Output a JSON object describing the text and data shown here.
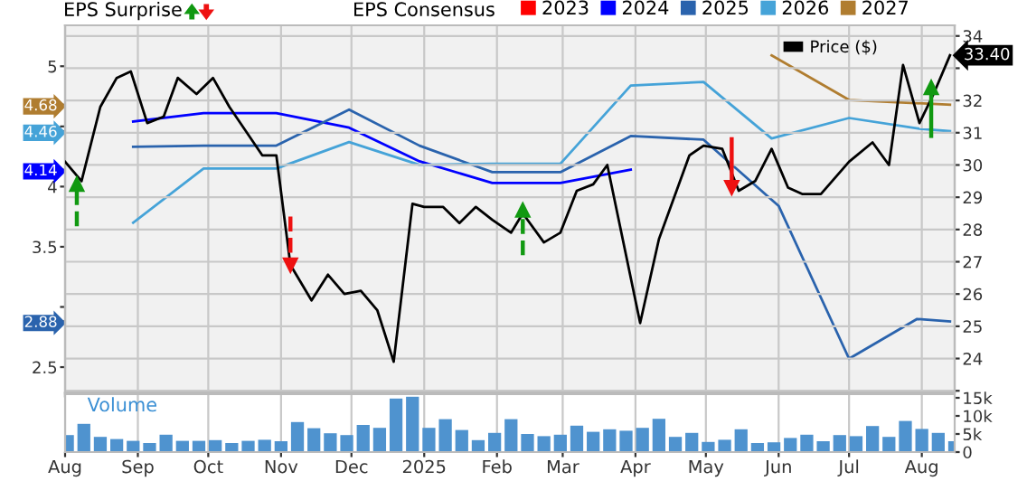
{
  "chart_data": [
    {
      "type": "line",
      "ylabel": "EPS Surprise",
      "legend_title": "EPS Consensus",
      "tick_labels": "y",
      "grid": true,
      "legend": "top",
      "marker": "none",
      "xlim": [
        "2024-08-01",
        "2025-08-15"
      ],
      "xticks": [
        {
          "value": "2024-08-01",
          "label": null
        },
        {
          "value": "2024-09-01",
          "label": null
        },
        {
          "value": "2024-10-01",
          "label": null
        },
        {
          "value": "2024-11-01",
          "label": null
        },
        {
          "value": "2024-12-01",
          "label": null
        },
        {
          "value": "2025-01-01",
          "label": null
        },
        {
          "value": "2025-02-01",
          "label": null
        },
        {
          "value": "2025-03-01",
          "label": null
        },
        {
          "value": "2025-04-01",
          "label": null
        },
        {
          "value": "2025-05-01",
          "label": null
        },
        {
          "value": "2025-06-01",
          "label": null
        },
        {
          "value": "2025-07-01",
          "label": null
        },
        {
          "value": "2025-08-01",
          "label": null
        }
      ],
      "ylim": [
        2.29,
        5.34
      ],
      "yticks": [
        2.5,
        2.88,
        {
          "value": 3,
          "label": null
        },
        3.5,
        4,
        4.14,
        4.46,
        {
          "value": 4.5,
          "label": null
        },
        4.68,
        5
      ],
      "y2lim": [
        22.95,
        34.33
      ],
      "y2ticks": [
        {
          "value": 23,
          "label": null
        },
        24,
        25,
        26,
        27,
        28,
        29,
        30,
        31,
        32,
        {
          "value": 33,
          "label": null
        },
        34
      ],
      "series": [
        {
          "name": "2023",
          "color": "#ff0000"
        },
        {
          "name": "2024",
          "color": "#0000ff",
          "x": [
            "2024-08-30",
            "2024-09-29",
            "2024-10-30",
            "2024-11-30",
            "2024-12-30",
            "2025-01-30",
            "2025-02-28",
            "2025-03-30"
          ],
          "values": [
            4.54,
            4.61,
            4.61,
            4.49,
            4.21,
            4.03,
            4.03,
            4.14
          ]
        },
        {
          "name": "2025",
          "color": "#2a63ad",
          "x": [
            "2024-08-30",
            "2024-09-29",
            "2024-10-30",
            "2024-11-30",
            "2024-12-30",
            "2025-01-30",
            "2025-02-28",
            "2025-03-30",
            "2025-04-30",
            "2025-06-01",
            "2025-07-01",
            "2025-07-30",
            "2025-08-13"
          ],
          "values": [
            4.33,
            4.34,
            4.34,
            4.64,
            4.34,
            4.12,
            4.12,
            4.42,
            4.39,
            3.84,
            2.57,
            2.9,
            2.88
          ]
        },
        {
          "name": "2026",
          "color": "#45a3d8",
          "x": [
            "2024-08-30",
            "2024-09-29",
            "2024-10-30",
            "2024-11-30",
            "2024-12-30",
            "2025-01-30",
            "2025-02-28",
            "2025-03-30",
            "2025-04-30",
            "2025-05-29",
            "2025-07-01",
            "2025-07-31",
            "2025-08-13"
          ],
          "values": [
            3.7,
            4.15,
            4.15,
            4.37,
            4.18,
            4.19,
            4.19,
            4.84,
            4.87,
            4.4,
            4.57,
            4.48,
            4.46
          ]
        },
        {
          "name": "2027",
          "color": "#b07d30",
          "x": [
            "2025-05-29",
            "2025-07-01",
            "2025-08-13"
          ],
          "values": [
            5.09,
            4.72,
            4.68
          ]
        },
        {
          "name": "Price ($)",
          "color": "#000000",
          "axis": "y2",
          "x": [
            "2024-08-01",
            "2024-08-08",
            "2024-08-16",
            "2024-08-23",
            "2024-08-29",
            "2024-09-05",
            "2024-09-12",
            "2024-09-18",
            "2024-09-26",
            "2024-10-03",
            "2024-10-10",
            "2024-10-24",
            "2024-10-30",
            "2024-11-05",
            "2024-11-14",
            "2024-11-21",
            "2024-11-28",
            "2024-12-05",
            "2024-12-12",
            "2024-12-19",
            "2024-12-27",
            "2025-01-01",
            "2025-01-09",
            "2025-01-16",
            "2025-01-23",
            "2025-01-30",
            "2025-02-07",
            "2025-02-12",
            "2025-02-21",
            "2025-02-28",
            "2025-03-07",
            "2025-03-14",
            "2025-03-20",
            "2025-04-03",
            "2025-04-11",
            "2025-04-24",
            "2025-04-30",
            "2025-05-08",
            "2025-05-15",
            "2025-05-22",
            "2025-05-29",
            "2025-06-05",
            "2025-06-11",
            "2025-06-19",
            "2025-07-01",
            "2025-07-11",
            "2025-07-18",
            "2025-07-24",
            "2025-07-31",
            "2025-08-06",
            "2025-08-13"
          ],
          "values": [
            30.1,
            29.5,
            31.8,
            32.7,
            32.9,
            31.3,
            31.5,
            32.7,
            32.2,
            32.7,
            31.8,
            30.3,
            30.3,
            26.9,
            25.8,
            26.6,
            26.0,
            26.1,
            25.5,
            23.9,
            28.8,
            28.7,
            28.7,
            28.2,
            28.7,
            28.3,
            27.9,
            28.5,
            27.6,
            27.9,
            29.2,
            29.4,
            30.0,
            25.1,
            27.7,
            30.3,
            30.6,
            30.5,
            29.2,
            29.5,
            30.5,
            29.3,
            29.1,
            29.1,
            30.1,
            30.7,
            30.0,
            33.1,
            31.3,
            32.2,
            33.4
          ],
          "value_labels": [
            null,
            null,
            null,
            null,
            null,
            null,
            null,
            null,
            null,
            null,
            null,
            null,
            null,
            null,
            null,
            null,
            null,
            null,
            null,
            null,
            null,
            null,
            null,
            null,
            null,
            null,
            null,
            null,
            null,
            null,
            null,
            null,
            null,
            null,
            null,
            null,
            null,
            null,
            null,
            null,
            null,
            null,
            null,
            null,
            null,
            null,
            null,
            null,
            null,
            null,
            "33.40"
          ]
        },
        {
          "type": "line",
          "marker": "triangle",
          "color": "#119911",
          "axis": "y2",
          "line_style": "dashed",
          "x": [
            "2024-08-06",
            "2024-08-06"
          ],
          "values": [
            28.1,
            29.4
          ]
        },
        {
          "type": "line",
          "marker": "triangle",
          "color": "#ee1111",
          "axis": "y2",
          "line_style": "dashed",
          "x": [
            "2024-11-05",
            "2024-11-05"
          ],
          "values": [
            28.4,
            26.9
          ]
        },
        {
          "type": "line",
          "marker": "triangle",
          "color": "#119911",
          "axis": "y2",
          "line_style": "dashed",
          "x": [
            "2025-02-12",
            "2025-02-12"
          ],
          "values": [
            27.2,
            28.6
          ]
        },
        {
          "type": "line",
          "marker": "triangle",
          "color": "#ee1111",
          "axis": "y2",
          "line_style": "solid",
          "x": [
            "2025-05-12",
            "2025-05-12"
          ],
          "values": [
            30.8,
            29.3
          ]
        },
        {
          "type": "line",
          "marker": "triangle",
          "color": "#119911",
          "axis": "y2",
          "line_style": "solid",
          "x": [
            "2025-08-05",
            "2025-08-05"
          ],
          "values": [
            30.9,
            32.4
          ]
        }
      ]
    },
    {
      "type": "bar",
      "title": "Volume",
      "grid": "x",
      "color": "#4f93cf",
      "xlim": [
        "2024-08-01",
        "2025-08-15"
      ],
      "xticks": [
        {
          "value": "2024-08-01",
          "label": "Aug"
        },
        {
          "value": "2024-09-01",
          "label": "Sep"
        },
        {
          "value": "2024-10-01",
          "label": "Oct"
        },
        {
          "value": "2024-11-01",
          "label": "Nov"
        },
        {
          "value": "2024-12-01",
          "label": "Dec"
        },
        {
          "value": "2025-01-01",
          "label": "2025"
        },
        {
          "value": "2025-02-01",
          "label": "Feb"
        },
        {
          "value": "2025-03-01",
          "label": "Mar"
        },
        {
          "value": "2025-04-01",
          "label": "Apr"
        },
        {
          "value": "2025-05-01",
          "label": "May"
        },
        {
          "value": "2025-06-01",
          "label": "Jun"
        },
        {
          "value": "2025-07-01",
          "label": "Jul"
        },
        {
          "value": "2025-08-01",
          "label": "Aug"
        }
      ],
      "ylim": [
        0,
        16
      ],
      "yticks": [
        0,
        {
          "value": 5,
          "label": "5k"
        },
        {
          "value": 10,
          "label": "10k"
        },
        {
          "value": 15,
          "label": "15k"
        }
      ],
      "x": [
        "2024-08-02",
        "2024-08-09",
        "2024-08-16",
        "2024-08-23",
        "2024-08-30",
        "2024-09-06",
        "2024-09-13",
        "2024-09-20",
        "2024-09-27",
        "2024-10-04",
        "2024-10-11",
        "2024-10-18",
        "2024-10-25",
        "2024-11-01",
        "2024-11-08",
        "2024-11-15",
        "2024-11-22",
        "2024-11-29",
        "2024-12-06",
        "2024-12-13",
        "2024-12-20",
        "2024-12-27",
        "2025-01-03",
        "2025-01-10",
        "2025-01-17",
        "2025-01-24",
        "2025-01-31",
        "2025-02-07",
        "2025-02-14",
        "2025-02-21",
        "2025-02-28",
        "2025-03-07",
        "2025-03-14",
        "2025-03-21",
        "2025-03-28",
        "2025-04-04",
        "2025-04-11",
        "2025-04-18",
        "2025-04-25",
        "2025-05-02",
        "2025-05-09",
        "2025-05-16",
        "2025-05-23",
        "2025-05-30",
        "2025-06-06",
        "2025-06-13",
        "2025-06-20",
        "2025-06-27",
        "2025-07-04",
        "2025-07-11",
        "2025-07-18",
        "2025-07-25",
        "2025-08-01",
        "2025-08-08",
        "2025-08-15"
      ],
      "values": [
        4.7,
        7.8,
        4.2,
        3.6,
        3.1,
        2.5,
        4.8,
        3.1,
        3.1,
        3.3,
        2.5,
        3.1,
        3.4,
        3.0,
        8.3,
        6.6,
        5.2,
        4.7,
        7.5,
        6.7,
        14.8,
        15.3,
        6.7,
        9.1,
        6.1,
        3.3,
        5.3,
        9.1,
        5.0,
        4.4,
        4.8,
        7.3,
        5.6,
        6.3,
        5.9,
        6.7,
        9.2,
        4.2,
        5.3,
        2.8,
        3.4,
        6.3,
        2.5,
        2.7,
        3.9,
        4.8,
        3.0,
        4.7,
        4.4,
        7.2,
        4.2,
        8.6,
        6.4,
        5.3,
        3.0
      ]
    }
  ]
}
